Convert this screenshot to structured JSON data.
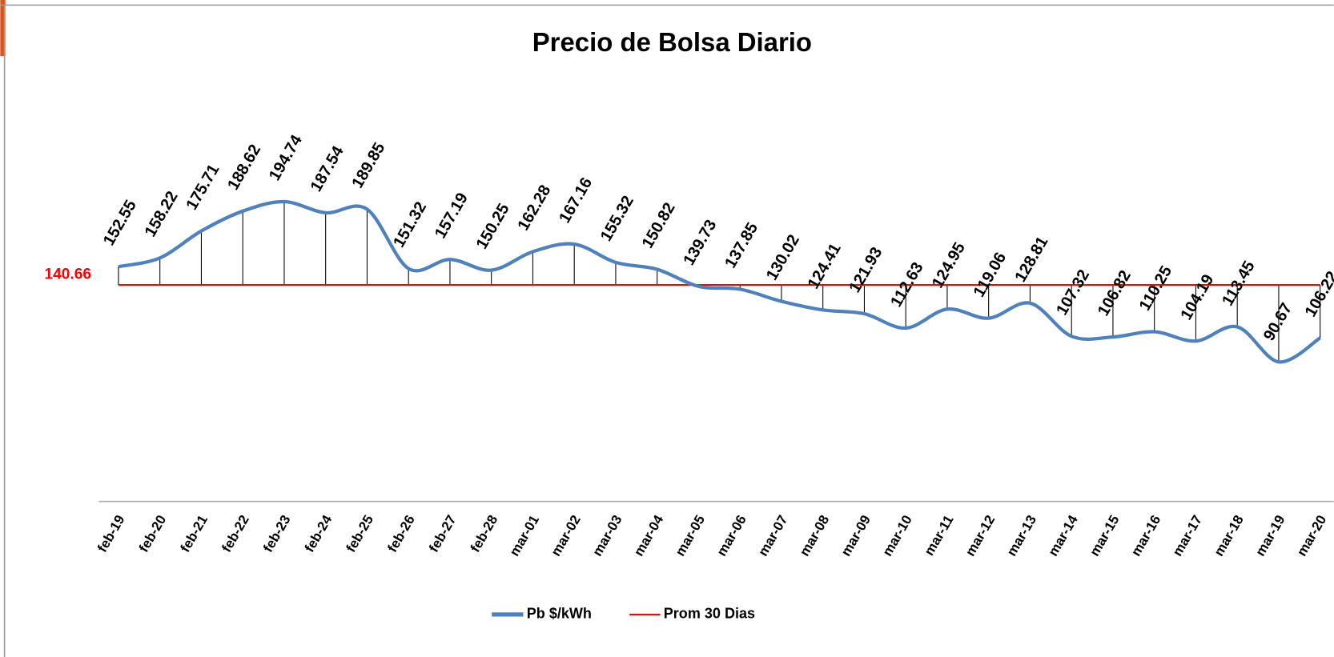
{
  "chart_data": {
    "type": "line",
    "title": "Precio de Bolsa Diario",
    "categories": [
      "feb-19",
      "feb-20",
      "feb-21",
      "feb-22",
      "feb-23",
      "feb-24",
      "feb-25",
      "feb-26",
      "feb-27",
      "feb-28",
      "mar-01",
      "mar-02",
      "mar-03",
      "mar-04",
      "mar-05",
      "mar-06",
      "mar-07",
      "mar-08",
      "mar-09",
      "mar-10",
      "mar-11",
      "mar-12",
      "mar-13",
      "mar-14",
      "mar-15",
      "mar-16",
      "mar-17",
      "mar-18",
      "mar-19",
      "mar-20"
    ],
    "series": [
      {
        "name": "Pb $/kWh",
        "color": "#4f81bd",
        "values": [
          152.55,
          158.22,
          175.71,
          188.62,
          194.74,
          187.54,
          189.85,
          151.32,
          157.19,
          150.25,
          162.28,
          167.16,
          155.32,
          150.82,
          139.73,
          137.85,
          130.02,
          124.41,
          121.93,
          112.63,
          124.95,
          119.06,
          128.81,
          107.32,
          106.82,
          110.25,
          104.19,
          113.45,
          90.67,
          106.22
        ]
      },
      {
        "name": "Prom 30 Dias",
        "color": "#ff0000",
        "value": 140.66
      }
    ],
    "ylim": [
      0,
      270
    ]
  }
}
